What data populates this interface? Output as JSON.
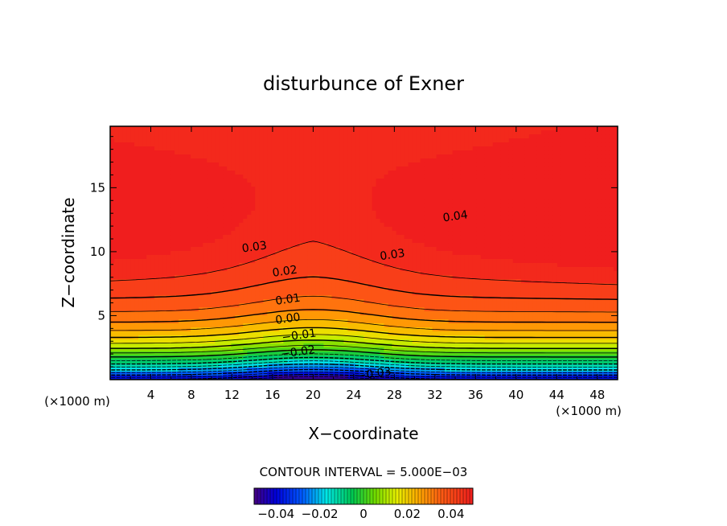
{
  "chart_data": {
    "type": "heatmap",
    "title": "disturbunce of Exner",
    "xlabel": "X−coordinate",
    "ylabel": "Z−coordinate",
    "x_unit": "(×1000 m)",
    "y_unit": "(×1000 m)",
    "xlim": [
      0,
      50
    ],
    "ylim": [
      0,
      19.8
    ],
    "x_ticks": [
      4,
      8,
      12,
      16,
      20,
      24,
      28,
      32,
      36,
      40,
      44,
      48
    ],
    "y_ticks": [
      5,
      10,
      15
    ],
    "contour_interval_text": "CONTOUR INTERVAL = 5.000E−03",
    "contour_interval": 0.005,
    "contour_labels": [
      {
        "text": "0.04",
        "x": 34,
        "y": 12.8
      },
      {
        "text": "0.03",
        "x": 14.2,
        "y": 10.4
      },
      {
        "text": "0.03",
        "x": 27.8,
        "y": 9.8
      },
      {
        "text": "0.02",
        "x": 17.2,
        "y": 8.5
      },
      {
        "text": "0.01",
        "x": 17.5,
        "y": 6.3
      },
      {
        "text": "0.00",
        "x": 17.5,
        "y": 4.8
      },
      {
        "text": "−0.01",
        "x": 18.6,
        "y": 3.5
      },
      {
        "text": "−0.02",
        "x": 18.5,
        "y": 2.2
      },
      {
        "text": "−0.03",
        "x": 26,
        "y": 0.5
      }
    ],
    "field_description_values": {
      "max_approx": 0.045,
      "min_approx": -0.04,
      "high_centers": [
        [
          0,
          13
        ],
        [
          50,
          13
        ]
      ],
      "low_center": [
        20,
        0
      ]
    },
    "colorbar": {
      "range": [
        -0.05,
        0.05
      ],
      "tick_values": [
        -0.04,
        -0.02,
        0,
        0.02,
        0.04
      ],
      "tick_labels": [
        "−0.04",
        "−0.02",
        "0",
        "0.02",
        "0.04"
      ]
    }
  }
}
